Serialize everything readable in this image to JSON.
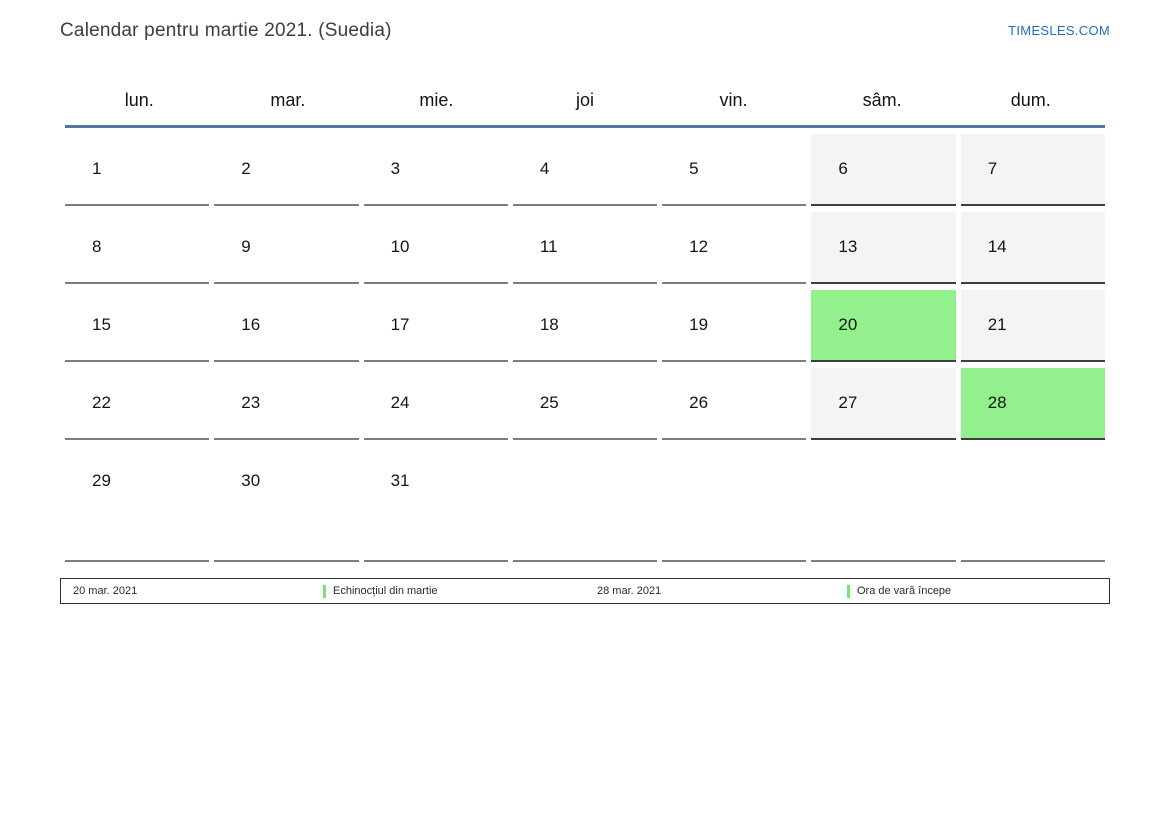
{
  "page": {
    "title": "Calendar pentru martie 2021. (Suedia)",
    "site_link": "TIMESLES.COM"
  },
  "calendar": {
    "weekday_headers": [
      {
        "label": "lun."
      },
      {
        "label": "mar."
      },
      {
        "label": "mie."
      },
      {
        "label": "joi"
      },
      {
        "label": "vin."
      },
      {
        "label": "sâm."
      },
      {
        "label": "dum."
      }
    ],
    "weeks": [
      {
        "days": [
          {
            "num": "1"
          },
          {
            "num": "2"
          },
          {
            "num": "3"
          },
          {
            "num": "4"
          },
          {
            "num": "5"
          },
          {
            "num": "6"
          },
          {
            "num": "7"
          }
        ]
      },
      {
        "days": [
          {
            "num": "8"
          },
          {
            "num": "9"
          },
          {
            "num": "10"
          },
          {
            "num": "11"
          },
          {
            "num": "12"
          },
          {
            "num": "13"
          },
          {
            "num": "14"
          }
        ]
      },
      {
        "days": [
          {
            "num": "15"
          },
          {
            "num": "16"
          },
          {
            "num": "17"
          },
          {
            "num": "18"
          },
          {
            "num": "19"
          },
          {
            "num": "20"
          },
          {
            "num": "21"
          }
        ]
      },
      {
        "days": [
          {
            "num": "22"
          },
          {
            "num": "23"
          },
          {
            "num": "24"
          },
          {
            "num": "25"
          },
          {
            "num": "26"
          },
          {
            "num": "27"
          },
          {
            "num": "28"
          }
        ]
      },
      {
        "days": [
          {
            "num": "29"
          },
          {
            "num": "30"
          },
          {
            "num": "31"
          },
          {
            "num": ""
          },
          {
            "num": ""
          },
          {
            "num": ""
          },
          {
            "num": ""
          }
        ]
      }
    ],
    "highlighted_days": [
      "20",
      "28"
    ]
  },
  "legend": {
    "items": [
      {
        "date": "20 mar. 2021",
        "label": "Echinocțiul din martie"
      },
      {
        "date": "28 mar. 2021",
        "label": "Ora de vară începe"
      }
    ]
  },
  "colors": {
    "highlight_green": "#92f18c",
    "weekend_gray": "#f4f4f4",
    "header_line_blue": "#54779e",
    "link_blue": "#1b6fc2",
    "legend_tick_green": "#74e673"
  }
}
